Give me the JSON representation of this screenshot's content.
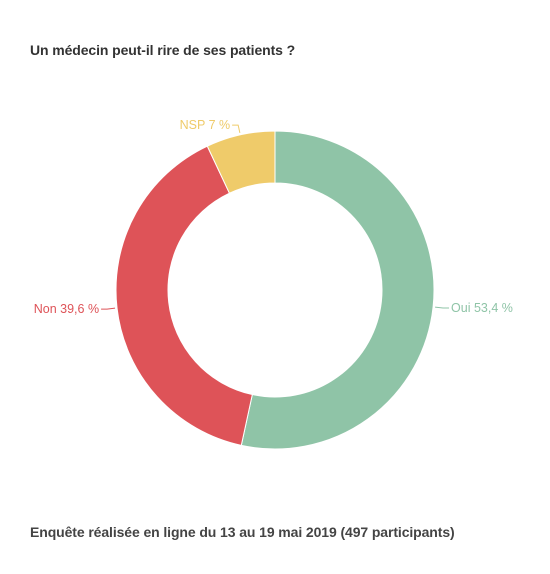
{
  "chart_data": {
    "type": "pie",
    "variant": "donut",
    "title": "Un médecin peut-il rire de ses patients ?",
    "footer": "Enquête réalisée en ligne du 13 au 19 mai 2019 (497 participants)",
    "slices": [
      {
        "label": "Oui",
        "value": 53.4,
        "display": "Oui 53,4 %",
        "color": "#8fc4a7"
      },
      {
        "label": "Non",
        "value": 39.6,
        "display": "Non 39,6 %",
        "color": "#de5358"
      },
      {
        "label": "NSP",
        "value": 7,
        "display": "NSP 7 %",
        "color": "#efcb6a"
      }
    ],
    "legend": "none",
    "start_angle": "top, clockwise"
  }
}
